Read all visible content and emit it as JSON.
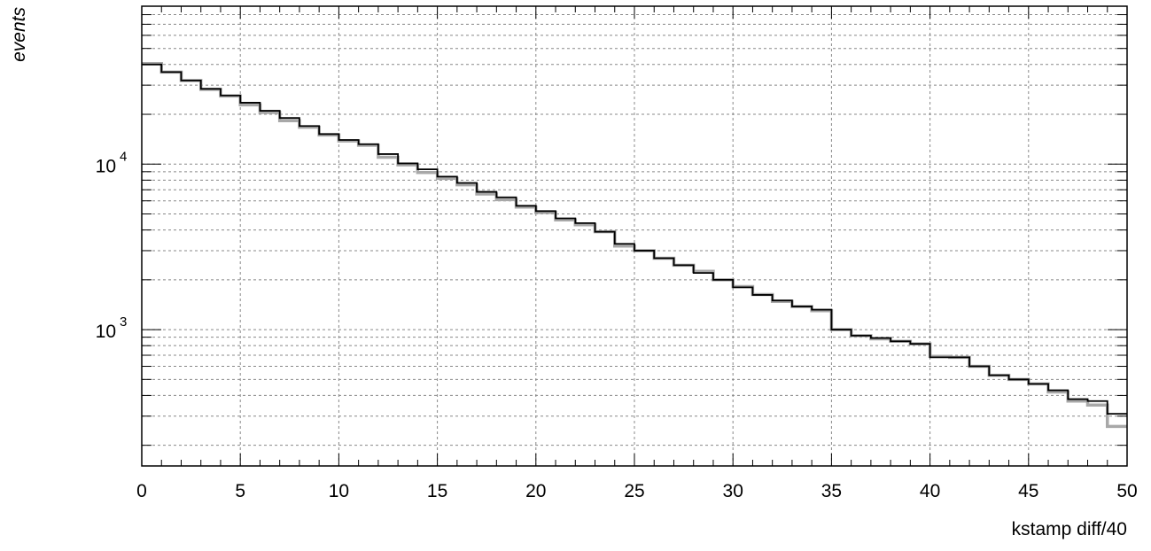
{
  "chart_data": {
    "type": "line",
    "title": "",
    "xlabel": "kstamp diff/40",
    "ylabel": "events",
    "x_scale": "linear",
    "y_scale": "log",
    "xlim": [
      0,
      50
    ],
    "ylim": [
      150,
      90000
    ],
    "grid": true,
    "legend": "none",
    "x_ticks": [
      "0",
      "5",
      "10",
      "15",
      "20",
      "25",
      "30",
      "35",
      "40",
      "45",
      "50"
    ],
    "y_ticks": [
      {
        "base": "10",
        "exponent": "3",
        "value": 1000
      },
      {
        "base": "10",
        "exponent": "4",
        "value": 10000
      }
    ],
    "bin_edges": [
      0,
      1,
      2,
      3,
      4,
      5,
      6,
      7,
      8,
      9,
      10,
      11,
      12,
      13,
      14,
      15,
      16,
      17,
      18,
      19,
      20,
      21,
      22,
      23,
      24,
      25,
      26,
      27,
      28,
      29,
      30,
      31,
      32,
      33,
      34,
      35,
      36,
      37,
      38,
      39,
      40,
      41,
      42,
      43,
      44,
      45,
      46,
      47,
      48,
      49,
      50
    ],
    "series": [
      {
        "color": "#a8a8a8",
        "values": [
          40500,
          36000,
          32000,
          28300,
          25800,
          22800,
          20500,
          18300,
          16700,
          15000,
          13800,
          13000,
          11000,
          9900,
          8900,
          8200,
          7500,
          6600,
          6100,
          5500,
          5100,
          4600,
          4300,
          3900,
          3200,
          3000,
          2700,
          2450,
          2250,
          2000,
          1820,
          1630,
          1480,
          1380,
          1300,
          1000,
          920,
          880,
          850,
          820,
          690,
          680,
          600,
          530,
          500,
          470,
          420,
          370,
          350,
          260
        ]
      },
      {
        "color": "#000000",
        "values": [
          40000,
          36000,
          32000,
          28500,
          26000,
          23500,
          21000,
          19000,
          17000,
          15200,
          14000,
          13200,
          11500,
          10100,
          9300,
          8400,
          7700,
          6800,
          6300,
          5600,
          5200,
          4700,
          4400,
          3900,
          3300,
          3000,
          2700,
          2450,
          2200,
          2000,
          1800,
          1620,
          1500,
          1380,
          1320,
          1000,
          920,
          890,
          850,
          820,
          680,
          680,
          600,
          530,
          500,
          470,
          430,
          380,
          370,
          310
        ]
      }
    ]
  }
}
